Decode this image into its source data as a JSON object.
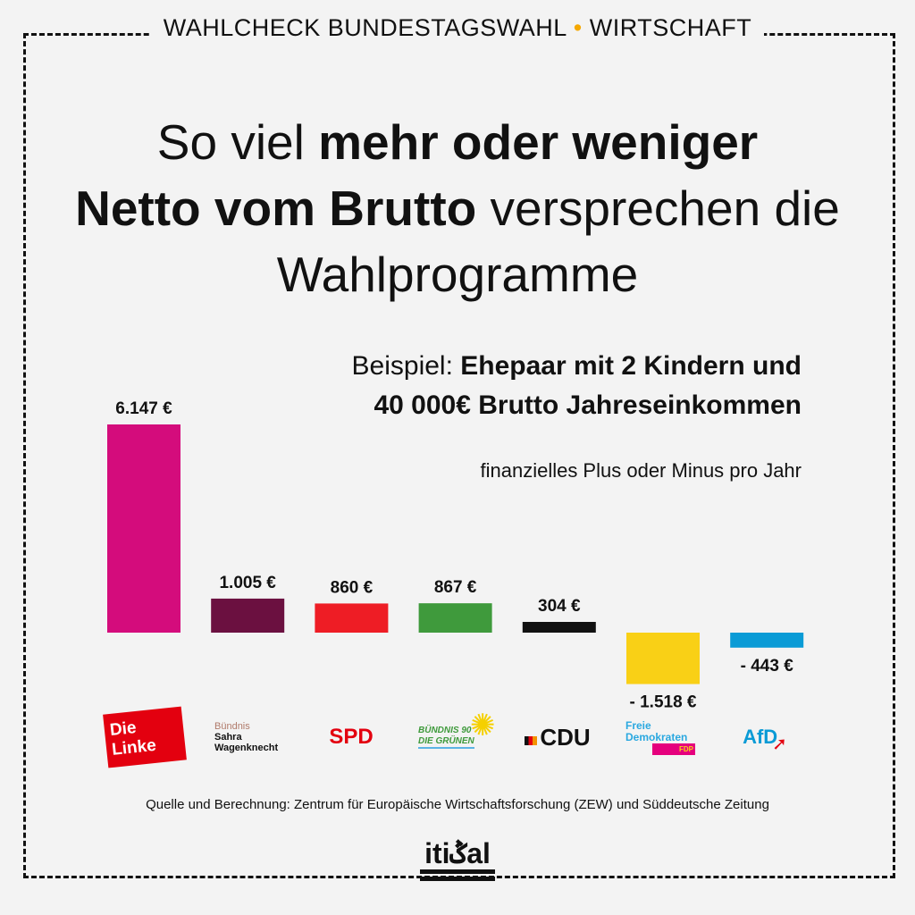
{
  "header": {
    "kicker_left": "WAHLCHECK BUNDESTAGSWAHL",
    "kicker_sep": "•",
    "kicker_right": "WIRTSCHAFT"
  },
  "title": {
    "part1": "So viel ",
    "part2": "mehr oder weniger",
    "part3": "Netto vom Brutto",
    "part4": " versprechen die Wahlprogramme"
  },
  "example": {
    "label": "Beispiel: ",
    "line1": "Ehepaar mit 2 Kindern und",
    "line2": "40 000€ Brutto Jahreseinkommen"
  },
  "chart_data": {
    "type": "bar",
    "title": "So viel mehr oder weniger Netto vom Brutto versprechen die Wahlprogramme",
    "ylabel": "finanzielles Plus oder Minus pro Jahr",
    "categories": [
      "Die Linke",
      "Bündnis Sahra Wagenknecht",
      "SPD",
      "Bündnis 90 Die Grünen",
      "CDU",
      "Freie Demokraten FDP",
      "AfD"
    ],
    "values": [
      6147,
      1005,
      860,
      867,
      304,
      -1518,
      -443
    ],
    "labels": [
      "6.147 €",
      "1.005 €",
      "860 €",
      "867 €",
      "304 €",
      "- 1.518 €",
      "- 443 €"
    ],
    "colors": [
      "#d40c7c",
      "#6b1040",
      "#ee1d25",
      "#3f9a3c",
      "#111111",
      "#f9d016",
      "#0a9bd6"
    ],
    "unit": "€"
  },
  "logos": {
    "linke": "Die Linke",
    "bsw_1": "Bündnis",
    "bsw_2": "Sahra",
    "bsw_3": "Wagenknecht",
    "spd": "SPD",
    "gruene_1": "BÜNDNIS 90",
    "gruene_2": "DIE GRÜNEN",
    "cdu": "CDU",
    "fdp_1": "Freie",
    "fdp_2": "Demokraten",
    "fdp_3": "FDP",
    "afd": "AfD"
  },
  "source": "Quelle und Berechnung: Zentrum für Europäische Wirtschaftsforschung (ZEW) und Süddeutsche Zeitung",
  "brand": "itiݣal"
}
